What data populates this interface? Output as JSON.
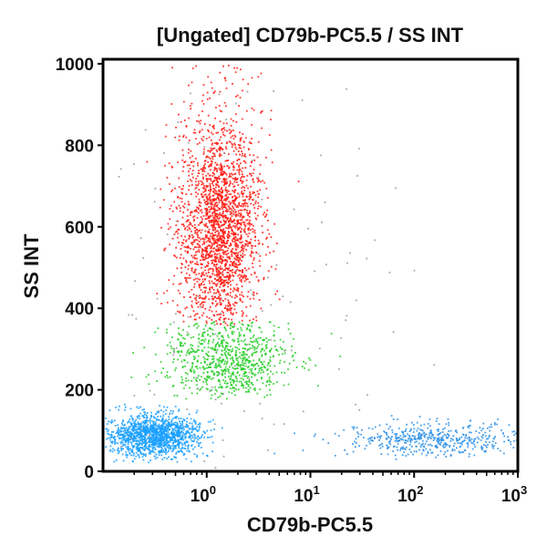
{
  "chart_data": {
    "type": "scatter",
    "title": "[Ungated] CD79b-PC5.5 / SS INT",
    "xlabel": "CD79b-PC5.5",
    "ylabel": "SS INT",
    "xscale": "log",
    "xlim": [
      0.1,
      1000
    ],
    "ylim": [
      0,
      1020
    ],
    "xticks": [
      {
        "value": 1,
        "base": "10",
        "exp": "0"
      },
      {
        "value": 10,
        "base": "10",
        "exp": "1"
      },
      {
        "value": 100,
        "base": "10",
        "exp": "2"
      },
      {
        "value": 1000,
        "base": "10",
        "exp": "3"
      }
    ],
    "yticks": [
      {
        "value": 0,
        "label": "0"
      },
      {
        "value": 200,
        "label": "200"
      },
      {
        "value": 400,
        "label": "400"
      },
      {
        "value": 600,
        "label": "600"
      },
      {
        "value": 800,
        "label": "800"
      },
      {
        "value": 1000,
        "label": "1000"
      }
    ],
    "grid": false,
    "populations": [
      {
        "color": "#ff1a10",
        "x_center": 1.3,
        "x_log_sd": 0.2,
        "y_center": 600,
        "y_sd": 140,
        "y_min": 360,
        "y_max": 1020,
        "events": 2200
      },
      {
        "color": "#22cc22",
        "x_center": 1.6,
        "x_log_sd": 0.3,
        "y_center": 280,
        "y_sd": 50,
        "y_min": 180,
        "y_max": 370,
        "events": 800
      },
      {
        "color": "#1aa0ff",
        "x_center": 0.3,
        "x_log_sd": 0.22,
        "y_center": 90,
        "y_sd": 25,
        "y_min": 20,
        "y_max": 180,
        "events": 1400
      },
      {
        "color": "#2a8fe8",
        "x_center": 150,
        "x_log_sd": 0.45,
        "y_center": 80,
        "y_sd": 20,
        "y_min": 30,
        "y_max": 140,
        "events": 500
      },
      {
        "color": "#999999",
        "x_center": 1,
        "x_log_sd": 1.0,
        "y_center": 400,
        "y_sd": 300,
        "y_min": 0,
        "y_max": 1020,
        "events": 150
      }
    ]
  }
}
